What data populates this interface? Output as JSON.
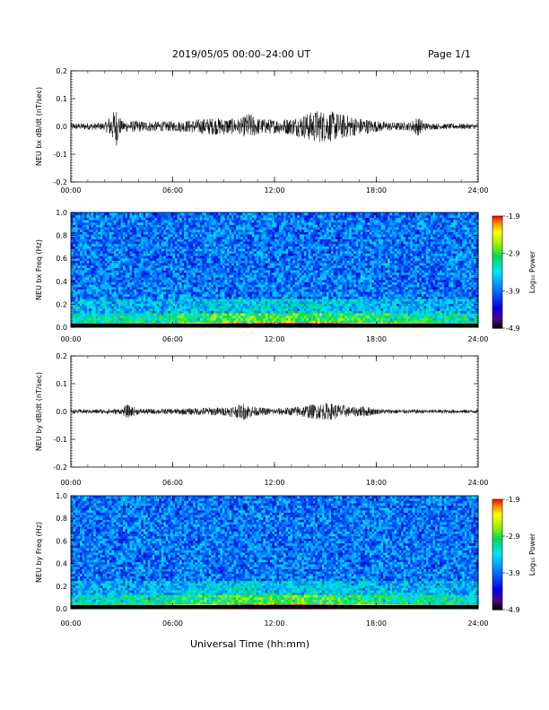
{
  "header": {
    "title": "2019/05/05  00:00–24:00 UT",
    "page": "Page 1/1"
  },
  "footer": {
    "xlabel": "Universal Time (hh:mm)"
  },
  "colors": {
    "trace": "#000000",
    "spectrogram_low": "#000000",
    "spectrogram_high": "#ff0000"
  },
  "chart_data": [
    {
      "type": "line",
      "ylabel": "NEU bx dB/dt (nT/sec)",
      "ylim": [
        -0.2,
        0.2
      ],
      "yticks": [
        -0.2,
        -0.1,
        0.0,
        0.1,
        0.2
      ],
      "ytick_labels": [
        "-0.2",
        "-0.1",
        "0.0",
        "0.1",
        "0.2"
      ],
      "xlim": [
        0,
        24
      ],
      "xticks": [
        0,
        6,
        12,
        18,
        24
      ],
      "xtick_labels": [
        "00:00",
        "06:00",
        "12:00",
        "18:00",
        "24:00"
      ],
      "series": [
        {
          "x": [
            0,
            1,
            2,
            2.7,
            3,
            4,
            5,
            6,
            7,
            8,
            9,
            10,
            10.5,
            11,
            12,
            13,
            13.8,
            14,
            14.6,
            15,
            15.3,
            16,
            17,
            17.2,
            18,
            19,
            20,
            20.4,
            21,
            22,
            23,
            24
          ],
          "envelope": [
            0.012,
            0.012,
            0.013,
            0.07,
            0.02,
            0.02,
            0.018,
            0.018,
            0.022,
            0.03,
            0.03,
            0.028,
            0.05,
            0.03,
            0.025,
            0.03,
            0.045,
            0.05,
            0.06,
            0.055,
            0.055,
            0.045,
            0.03,
            0.03,
            0.02,
            0.015,
            0.015,
            0.035,
            0.012,
            0.01,
            0.01,
            0.01
          ]
        }
      ]
    },
    {
      "type": "heatmap",
      "ylabel": "NEU bx Freq (Hz)",
      "ylim": [
        0.0,
        1.0
      ],
      "yticks": [
        0.0,
        0.2,
        0.4,
        0.6,
        0.8,
        1.0
      ],
      "ytick_labels": [
        "0.0",
        "0.2",
        "0.4",
        "0.6",
        "0.8",
        "1.0"
      ],
      "xlim": [
        0,
        24
      ],
      "xticks": [
        0,
        6,
        12,
        18,
        24
      ],
      "xtick_labels": [
        "00:00",
        "06:00",
        "12:00",
        "18:00",
        "24:00"
      ],
      "colorbar": {
        "label": "Log₁₀ Power",
        "range": [
          -4.9,
          -1.9
        ],
        "ticks": [
          -1.9,
          -2.9,
          -3.9,
          -4.9
        ],
        "tick_labels": [
          "-1.9",
          "-2.9",
          "-3.9",
          "-4.9"
        ]
      }
    },
    {
      "type": "line",
      "ylabel": "NEU by dB/dt (nT/sec)",
      "ylim": [
        -0.2,
        0.2
      ],
      "yticks": [
        -0.2,
        -0.1,
        0.0,
        0.1,
        0.2
      ],
      "ytick_labels": [
        "-0.2",
        "-0.1",
        "0.0",
        "0.1",
        "0.2"
      ],
      "xlim": [
        0,
        24
      ],
      "xticks": [
        0,
        6,
        12,
        18,
        24
      ],
      "xtick_labels": [
        "00:00",
        "06:00",
        "12:00",
        "18:00",
        "24:00"
      ],
      "series": [
        {
          "x": [
            0,
            1,
            2,
            3,
            3.3,
            4,
            5,
            6,
            7,
            8,
            9,
            10,
            10.2,
            11,
            12,
            13,
            13.5,
            14,
            15,
            15.3,
            16,
            16.5,
            17,
            17.5,
            18,
            19,
            20,
            21,
            22,
            23,
            24
          ],
          "envelope": [
            0.008,
            0.008,
            0.009,
            0.01,
            0.025,
            0.01,
            0.01,
            0.01,
            0.012,
            0.015,
            0.015,
            0.025,
            0.03,
            0.015,
            0.012,
            0.015,
            0.02,
            0.025,
            0.03,
            0.03,
            0.025,
            0.015,
            0.02,
            0.018,
            0.01,
            0.008,
            0.008,
            0.007,
            0.007,
            0.007,
            0.007
          ]
        }
      ]
    },
    {
      "type": "heatmap",
      "ylabel": "NEU by Freq (Hz)",
      "ylim": [
        0.0,
        1.0
      ],
      "yticks": [
        0.0,
        0.2,
        0.4,
        0.6,
        0.8,
        1.0
      ],
      "ytick_labels": [
        "0.0",
        "0.2",
        "0.4",
        "0.6",
        "0.8",
        "1.0"
      ],
      "xlim": [
        0,
        24
      ],
      "xticks": [
        0,
        6,
        12,
        18,
        24
      ],
      "xtick_labels": [
        "00:00",
        "06:00",
        "12:00",
        "18:00",
        "24:00"
      ],
      "colorbar": {
        "label": "Log₁₀ Power",
        "range": [
          -4.9,
          -1.9
        ],
        "ticks": [
          -1.9,
          -2.9,
          -3.9,
          -4.9
        ],
        "tick_labels": [
          "-1.9",
          "-2.9",
          "-3.9",
          "-4.9"
        ]
      }
    }
  ]
}
